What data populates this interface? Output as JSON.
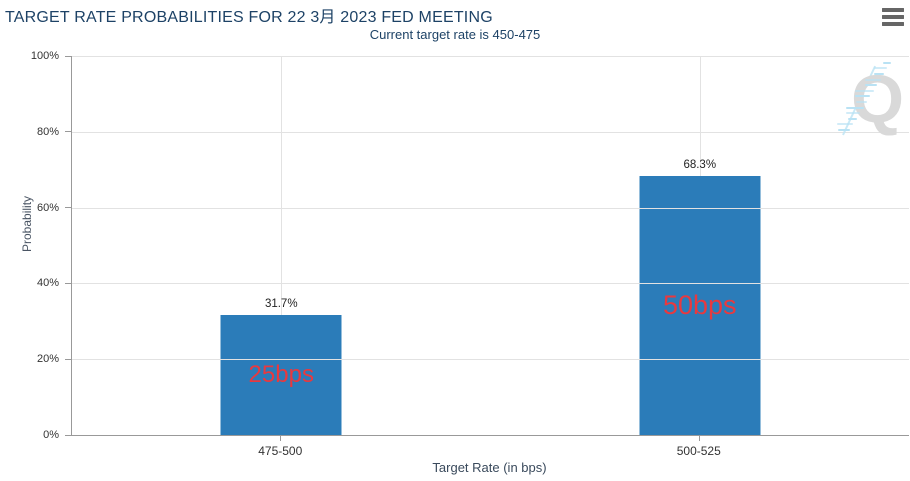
{
  "header": {
    "menu_icon": "hamburger-icon"
  },
  "watermark": {
    "name": "quikstrike-q-logo",
    "letter": "Q"
  },
  "chart_data": {
    "type": "bar",
    "title": "TARGET RATE PROBABILITIES FOR 22 3月 2023 FED MEETING",
    "subtitle": "Current target rate is 450-475",
    "categories": [
      "475-500",
      "500-525"
    ],
    "values": [
      31.7,
      68.3
    ],
    "value_labels": [
      "31.7%",
      "68.3%"
    ],
    "bar_annotations": [
      "25bps",
      "50bps"
    ],
    "xlabel": "Target Rate (in bps)",
    "ylabel": "Probability",
    "ylim": [
      0,
      100
    ],
    "yticks": [
      "0%",
      "20%",
      "40%",
      "60%",
      "80%",
      "100%"
    ],
    "grid": true,
    "legend": "none",
    "colors": {
      "bar": "#2b7cb9",
      "annotation": "#e8393f",
      "title": "#1d4266",
      "tick_label": "#333333",
      "axis_line": "#999999",
      "gridline": "#e2e2e2",
      "menu_icon": "#666666",
      "watermark_letter": "#d9d9d9",
      "watermark_dash": "#b9e2f4"
    }
  }
}
